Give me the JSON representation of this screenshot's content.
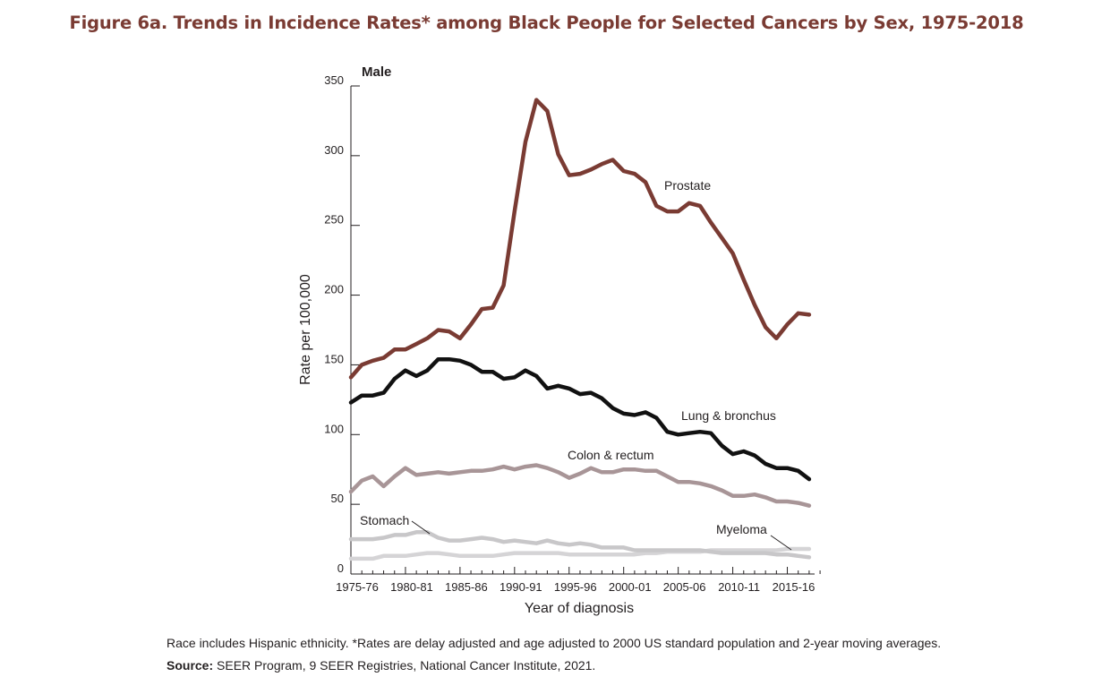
{
  "figure_title": "Figure 6a. Trends in Incidence Rates* among Black People for Selected Cancers by Sex, 1975-2018",
  "footnote": "Race includes Hispanic ethnicity. *Rates are delay adjusted and age adjusted to 2000 US standard population and 2-year moving averages.",
  "source_label": "Source:",
  "source_text": "SEER Program, 9 SEER Registries, National Cancer Institute, 2021.",
  "colors": {
    "title": "#7a3b33",
    "prostate": "#7a3b33",
    "lung": "#111111",
    "colon": "#a89597",
    "stomach": "#c8c7c9",
    "myeloma": "#d5d4d6"
  },
  "chart_data": {
    "type": "line",
    "title": "Male",
    "xlabel": "Year of diagnosis",
    "ylabel": "Rate per 100,000",
    "ylim": [
      0,
      350
    ],
    "yticks": [
      "0",
      "50",
      "100",
      "150",
      "200",
      "250",
      "300",
      "350"
    ],
    "xtick_labels": [
      "1975-76",
      "1980-81",
      "1985-86",
      "1990-91",
      "1995-96",
      "2000-01",
      "2005-06",
      "2010-11",
      "2015-16"
    ],
    "grid": false,
    "x": [
      1975,
      1976,
      1977,
      1978,
      1979,
      1980,
      1981,
      1982,
      1983,
      1984,
      1985,
      1986,
      1987,
      1988,
      1989,
      1990,
      1991,
      1992,
      1993,
      1994,
      1995,
      1996,
      1997,
      1998,
      1999,
      2000,
      2001,
      2002,
      2003,
      2004,
      2005,
      2006,
      2007,
      2008,
      2009,
      2010,
      2011,
      2012,
      2013,
      2014,
      2015,
      2016,
      2017
    ],
    "series": [
      {
        "name": "Prostate",
        "values": [
          141,
          150,
          153,
          155,
          161,
          161,
          165,
          169,
          175,
          174,
          169,
          179,
          190,
          191,
          207,
          260,
          310,
          340,
          332,
          301,
          286,
          287,
          290,
          294,
          297,
          289,
          287,
          281,
          264,
          260,
          260,
          266,
          264,
          252,
          241,
          230,
          211,
          193,
          177,
          169,
          179,
          187,
          186
        ]
      },
      {
        "name": "Lung & bronchus",
        "values": [
          123,
          128,
          128,
          130,
          140,
          146,
          142,
          146,
          154,
          154,
          153,
          150,
          145,
          145,
          140,
          141,
          146,
          142,
          133,
          135,
          133,
          129,
          130,
          126,
          119,
          115,
          114,
          116,
          112,
          102,
          100,
          101,
          102,
          101,
          92,
          86,
          88,
          85,
          79,
          76,
          76,
          74,
          68
        ]
      },
      {
        "name": "Colon & rectum",
        "values": [
          59,
          67,
          70,
          63,
          70,
          76,
          71,
          72,
          73,
          72,
          73,
          74,
          74,
          75,
          77,
          75,
          77,
          78,
          76,
          73,
          69,
          72,
          76,
          73,
          73,
          75,
          75,
          74,
          74,
          70,
          66,
          66,
          65,
          63,
          60,
          56,
          56,
          57,
          55,
          52,
          52,
          51,
          49
        ]
      },
      {
        "name": "Stomach",
        "values": [
          25,
          25,
          25,
          26,
          28,
          28,
          30,
          30,
          26,
          24,
          24,
          25,
          26,
          25,
          23,
          24,
          23,
          22,
          24,
          22,
          21,
          22,
          21,
          19,
          19,
          19,
          17,
          17,
          17,
          17,
          17,
          17,
          17,
          16,
          15,
          15,
          15,
          15,
          15,
          14,
          14,
          13,
          12
        ]
      },
      {
        "name": "Myeloma",
        "values": [
          11,
          11,
          11,
          13,
          13,
          13,
          14,
          15,
          15,
          14,
          13,
          13,
          13,
          13,
          14,
          15,
          15,
          15,
          15,
          15,
          14,
          14,
          14,
          14,
          14,
          14,
          14,
          15,
          15,
          16,
          16,
          16,
          16,
          17,
          17,
          17,
          17,
          17,
          17,
          17,
          18,
          18,
          18
        ]
      }
    ]
  }
}
